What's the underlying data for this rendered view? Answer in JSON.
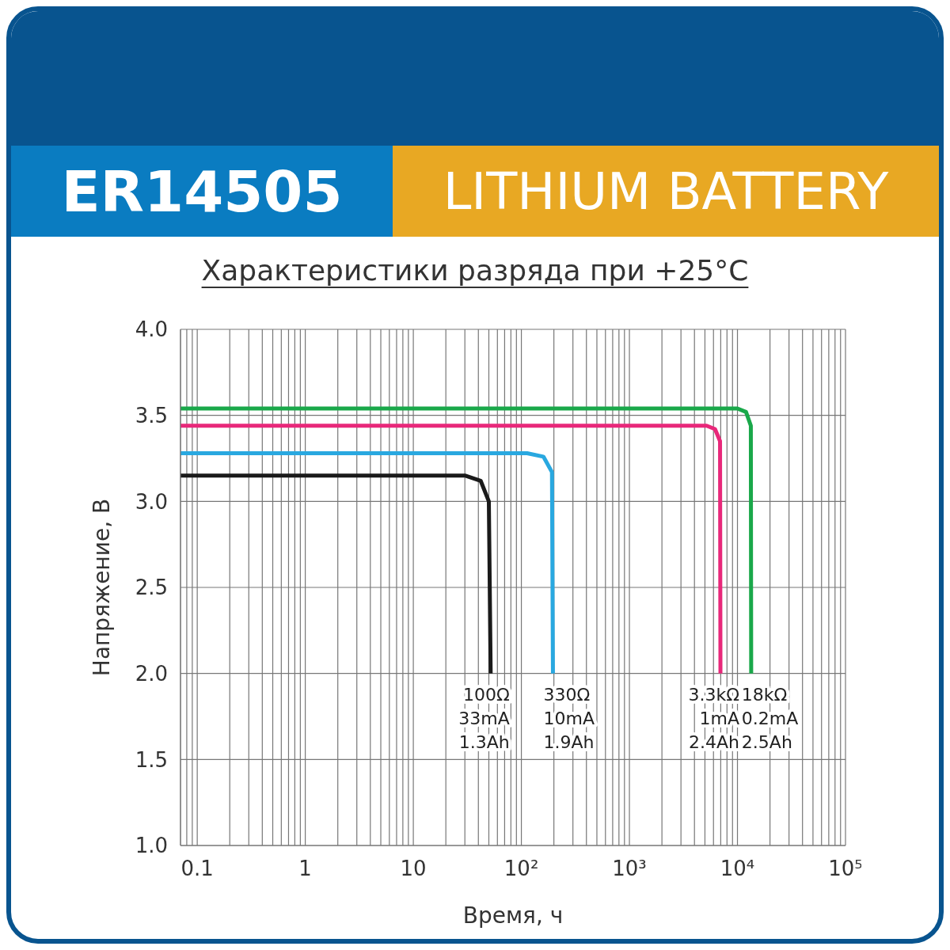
{
  "chart_data": {
    "type": "line",
    "title": "Характеристики разряда при +25°C",
    "xlabel": "Время, ч",
    "ylabel": "Напряжение, В",
    "annotations": [
      "ER14505",
      "LITHIUM BATTERY",
      {
        "text": "100Ω\n33mA\n1.3Ah",
        "x": 52,
        "y": 2.0
      },
      {
        "text": "330Ω\n10mA\n1.9Ah",
        "x": 196,
        "y": 2.0
      },
      {
        "text": "3.3kΩ\n1mA\n2.4Ah",
        "x": 6960,
        "y": 2.0
      },
      {
        "text": "18kΩ\n0.2mA\n2.5Ah",
        "x": 13400,
        "y": 2.0
      }
    ],
    "series": [
      {
        "color": "#1a1a1a",
        "x": [
          0.07,
          30,
          42,
          50,
          52
        ],
        "values": [
          3.15,
          3.15,
          3.12,
          3.0,
          2.0
        ]
      },
      {
        "color": "#29a8e0",
        "x": [
          0.07,
          113,
          160,
          192,
          196
        ],
        "values": [
          3.28,
          3.28,
          3.26,
          3.17,
          2.0
        ]
      },
      {
        "color": "#e8287a",
        "x": [
          0.07,
          5180,
          6200,
          6900,
          6960
        ],
        "values": [
          3.44,
          3.44,
          3.42,
          3.35,
          2.0
        ]
      },
      {
        "color": "#1aa84a",
        "x": [
          0.07,
          10000,
          12000,
          13300,
          13400
        ],
        "values": [
          3.54,
          3.54,
          3.52,
          3.44,
          2.0
        ]
      }
    ],
    "log": "x",
    "grid": true,
    "legend": false,
    "marker": "none",
    "line_style": "solid",
    "xlim": [
      0.07,
      100000
    ],
    "xticks": [
      {
        "value": 0.08,
        "label": null
      },
      {
        "value": 0.09,
        "label": null
      },
      0.1,
      {
        "value": 0.2,
        "label": null
      },
      {
        "value": 0.3,
        "label": null
      },
      {
        "value": 0.4,
        "label": null
      },
      {
        "value": 0.5,
        "label": null
      },
      {
        "value": 0.6,
        "label": null
      },
      {
        "value": 0.7,
        "label": null
      },
      {
        "value": 0.8,
        "label": null
      },
      {
        "value": 0.9,
        "label": null
      },
      1,
      {
        "value": 2,
        "label": null
      },
      {
        "value": 3,
        "label": null
      },
      {
        "value": 4,
        "label": null
      },
      {
        "value": 5,
        "label": null
      },
      {
        "value": 6,
        "label": null
      },
      {
        "value": 7,
        "label": null
      },
      {
        "value": 8,
        "label": null
      },
      {
        "value": 9,
        "label": null
      },
      10,
      {
        "value": 20,
        "label": null
      },
      {
        "value": 30,
        "label": null
      },
      {
        "value": 40,
        "label": null
      },
      {
        "value": 50,
        "label": null
      },
      {
        "value": 60,
        "label": null
      },
      {
        "value": 70,
        "label": null
      },
      {
        "value": 80,
        "label": null
      },
      {
        "value": 90,
        "label": null
      },
      {
        "value": 100,
        "label": "10²"
      },
      {
        "value": 200,
        "label": null
      },
      {
        "value": 300,
        "label": null
      },
      {
        "value": 400,
        "label": null
      },
      {
        "value": 500,
        "label": null
      },
      {
        "value": 600,
        "label": null
      },
      {
        "value": 700,
        "label": null
      },
      {
        "value": 800,
        "label": null
      },
      {
        "value": 900,
        "label": null
      },
      {
        "value": 1000,
        "label": "10³"
      },
      {
        "value": 2000,
        "label": null
      },
      {
        "value": 3000,
        "label": null
      },
      {
        "value": 4000,
        "label": null
      },
      {
        "value": 5000,
        "label": null
      },
      {
        "value": 6000,
        "label": null
      },
      {
        "value": 7000,
        "label": null
      },
      {
        "value": 8000,
        "label": null
      },
      {
        "value": 9000,
        "label": null
      },
      {
        "value": 10000,
        "label": "10⁴"
      },
      {
        "value": 20000,
        "label": null
      },
      {
        "value": 30000,
        "label": null
      },
      {
        "value": 40000,
        "label": null
      },
      {
        "value": 50000,
        "label": null
      },
      {
        "value": 60000,
        "label": null
      },
      {
        "value": 70000,
        "label": null
      },
      {
        "value": 80000,
        "label": null
      },
      {
        "value": 90000,
        "label": null
      },
      {
        "value": 100000,
        "label": "10⁵"
      }
    ],
    "ylim": [
      1.0,
      4.0
    ],
    "yticks": [
      {
        "value": 1.0,
        "label": "1.0"
      },
      1.5,
      {
        "value": 2.0,
        "label": "2.0"
      },
      2.5,
      {
        "value": 3.0,
        "label": "3.0"
      },
      3.5,
      {
        "value": 4.0,
        "label": "4.0"
      }
    ]
  }
}
